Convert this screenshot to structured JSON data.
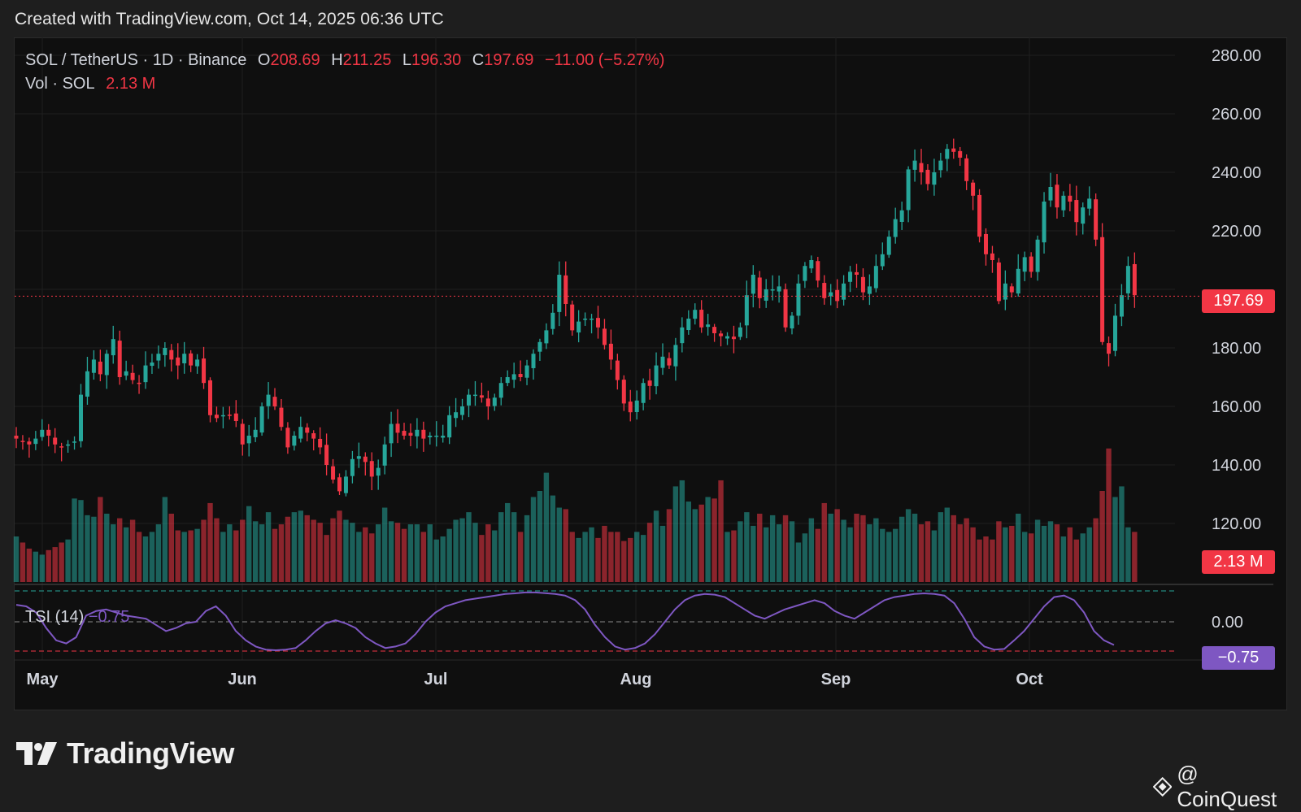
{
  "header": {
    "text": "Created with TradingView.com, Oct 14, 2025 06:36 UTC"
  },
  "legend": {
    "symbol": "SOL / TetherUS · 1D · Binance",
    "o_label": "O",
    "o_value": "208.69",
    "h_label": "H",
    "h_value": "211.25",
    "l_label": "L",
    "l_value": "196.30",
    "c_label": "C",
    "c_value": "197.69",
    "change": "−11.00 (−5.27%)",
    "vol_label": "Vol · SOL",
    "vol_value": "2.13 M"
  },
  "tsi": {
    "label": "TSI (14)",
    "value": "−0.75"
  },
  "tags": {
    "price": "197.69",
    "volume": "2.13 M",
    "tsi": "−0.75"
  },
  "logo": {
    "text": "TradingView"
  },
  "watermark": {
    "text": "@ CoinQuest"
  },
  "colors": {
    "up": "#26a69a",
    "down": "#f23645",
    "tsi_line": "#7e57c2",
    "background": "#0f0f0f"
  },
  "chart_data": {
    "type": "candlestick",
    "title": "SOL / TetherUS · 1D · Binance",
    "x_tick_labels": [
      "May",
      "Jun",
      "Jul",
      "Aug",
      "Sep",
      "Oct"
    ],
    "y_tick_labels": [
      "280.00",
      "260.00",
      "240.00",
      "220.00",
      "180.00",
      "160.00",
      "140.00",
      "120.00"
    ],
    "ylim": [
      100,
      285
    ],
    "last_close": 197.69,
    "closes": [
      149,
      148,
      147,
      149,
      152,
      150,
      147,
      146,
      147,
      148,
      164,
      172,
      176,
      171,
      178,
      183,
      170,
      172,
      169,
      168,
      174,
      175,
      178,
      180,
      176,
      174,
      178,
      174,
      176,
      168,
      157,
      156,
      157,
      157,
      155,
      147,
      150,
      152,
      160,
      164,
      160,
      153,
      146,
      150,
      153,
      151,
      149,
      146,
      140,
      135,
      131,
      136,
      142,
      143,
      141,
      136,
      139,
      147,
      154,
      151,
      150,
      150,
      152,
      149,
      150,
      150,
      150,
      157,
      158,
      160,
      164,
      164,
      163,
      160,
      163,
      168,
      170,
      171,
      170,
      174,
      178,
      182,
      186,
      192,
      205,
      195,
      186,
      189,
      190,
      190,
      187,
      181,
      176,
      169,
      161,
      158,
      162,
      168,
      167,
      174,
      177,
      174,
      181,
      187,
      190,
      193,
      187,
      188,
      185,
      184,
      184,
      183,
      187,
      198,
      205,
      197,
      200,
      200,
      201,
      187,
      191,
      202,
      208,
      210,
      203,
      197,
      199,
      196,
      202,
      206,
      205,
      199,
      201,
      208,
      212,
      218,
      224,
      227,
      241,
      244,
      240,
      236,
      240,
      244,
      248,
      247,
      245,
      237,
      232,
      218,
      212,
      210,
      196,
      202,
      199,
      207,
      211,
      206,
      217,
      230,
      235,
      228,
      232,
      230,
      223,
      228,
      231,
      217,
      182,
      178,
      191,
      198,
      208,
      198
    ],
    "volumes": [
      30,
      26,
      22,
      20,
      18,
      21,
      23,
      26,
      28,
      55,
      54,
      44,
      43,
      56,
      45,
      38,
      42,
      36,
      41,
      33,
      30,
      33,
      38,
      56,
      45,
      34,
      33,
      34,
      35,
      41,
      52,
      42,
      33,
      38,
      34,
      41,
      50,
      40,
      38,
      46,
      35,
      38,
      43,
      46,
      47,
      44,
      41,
      39,
      31,
      42,
      47,
      41,
      39,
      33,
      36,
      32,
      38,
      49,
      40,
      39,
      35,
      38,
      38,
      33,
      38,
      28,
      30,
      35,
      41,
      42,
      46,
      39,
      31,
      38,
      34,
      46,
      52,
      46,
      33,
      44,
      56,
      60,
      72,
      57,
      49,
      48,
      33,
      29,
      33,
      36,
      29,
      37,
      33,
      33,
      27,
      29,
      33,
      31,
      39,
      47,
      37,
      48,
      63,
      67,
      53,
      48,
      51,
      56,
      55,
      67,
      33,
      34,
      40,
      46,
      37,
      45,
      36,
      44,
      38,
      44,
      40,
      26,
      32,
      42,
      35,
      52,
      45,
      48,
      41,
      36,
      45,
      44,
      38,
      42,
      35,
      33,
      35,
      43,
      48,
      45,
      38,
      40,
      34,
      46,
      49,
      44,
      38,
      42,
      36,
      28,
      30,
      28,
      40,
      36,
      37,
      45,
      33,
      32,
      41,
      37,
      40,
      38,
      30,
      36,
      28,
      32,
      36,
      42,
      60,
      88,
      56,
      63,
      36,
      33
    ],
    "tsi": [
      0.55,
      0.5,
      0.3,
      -0.2,
      -0.6,
      -0.7,
      -0.5,
      0.2,
      0.35,
      0.4,
      0.3,
      0.2,
      0.15,
      0.1,
      -0.1,
      -0.3,
      -0.2,
      -0.05,
      0.0,
      0.35,
      0.5,
      0.2,
      -0.3,
      -0.6,
      -0.8,
      -0.9,
      -0.92,
      -0.9,
      -0.85,
      -0.6,
      -0.3,
      -0.05,
      0.05,
      -0.05,
      -0.2,
      -0.5,
      -0.7,
      -0.85,
      -0.8,
      -0.7,
      -0.4,
      0.0,
      0.3,
      0.5,
      0.6,
      0.7,
      0.75,
      0.8,
      0.85,
      0.9,
      0.92,
      0.95,
      0.95,
      0.93,
      0.9,
      0.85,
      0.7,
      0.4,
      -0.1,
      -0.5,
      -0.8,
      -0.9,
      -0.85,
      -0.7,
      -0.4,
      0.0,
      0.4,
      0.7,
      0.85,
      0.9,
      0.88,
      0.8,
      0.6,
      0.4,
      0.2,
      0.1,
      0.25,
      0.4,
      0.5,
      0.6,
      0.7,
      0.6,
      0.35,
      0.2,
      0.1,
      0.3,
      0.5,
      0.7,
      0.8,
      0.85,
      0.9,
      0.92,
      0.9,
      0.85,
      0.6,
      0.1,
      -0.5,
      -0.8,
      -0.9,
      -0.88,
      -0.6,
      -0.3,
      0.1,
      0.5,
      0.8,
      0.85,
      0.7,
      0.3,
      -0.3,
      -0.6,
      -0.75
    ]
  }
}
